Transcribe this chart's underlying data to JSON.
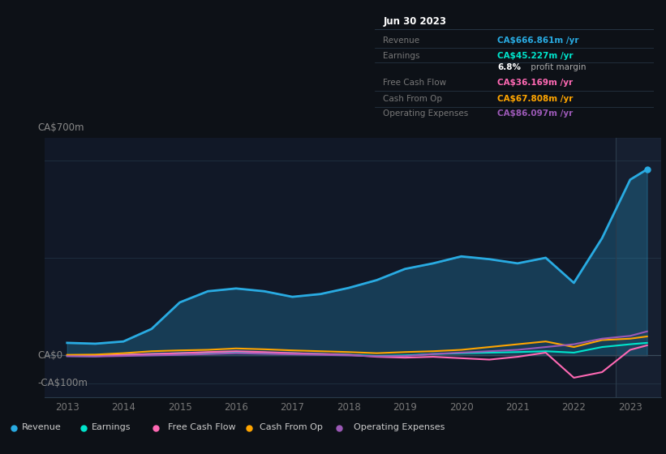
{
  "background_color": "#0d1117",
  "plot_bg_color": "#111827",
  "grid_color": "#1e2d3d",
  "zero_line_color": "#3a4a5a",
  "years": [
    2013.0,
    2013.5,
    2014.0,
    2014.5,
    2015.0,
    2015.5,
    2016.0,
    2016.5,
    2017.0,
    2017.5,
    2018.0,
    2018.5,
    2019.0,
    2019.5,
    2020.0,
    2020.5,
    2021.0,
    2021.5,
    2022.0,
    2022.5,
    2023.0,
    2023.3
  ],
  "revenue": [
    45,
    42,
    50,
    95,
    190,
    230,
    240,
    230,
    210,
    220,
    242,
    270,
    310,
    330,
    355,
    345,
    330,
    350,
    260,
    420,
    630,
    667
  ],
  "earnings": [
    -2,
    -3,
    2,
    5,
    8,
    10,
    12,
    10,
    8,
    5,
    2,
    -2,
    0,
    5,
    8,
    10,
    12,
    15,
    10,
    30,
    40,
    45
  ],
  "free_cash_flow": [
    0,
    -1,
    2,
    5,
    8,
    12,
    15,
    12,
    8,
    5,
    2,
    -5,
    -8,
    -5,
    -10,
    -15,
    -5,
    10,
    -80,
    -60,
    20,
    36
  ],
  "cash_from_op": [
    2,
    3,
    8,
    15,
    18,
    20,
    25,
    22,
    18,
    15,
    12,
    8,
    12,
    15,
    20,
    30,
    40,
    50,
    30,
    55,
    60,
    68
  ],
  "operating_expenses": [
    -3,
    -4,
    -2,
    0,
    2,
    5,
    8,
    6,
    4,
    2,
    0,
    -3,
    -2,
    5,
    10,
    15,
    20,
    30,
    40,
    60,
    70,
    86
  ],
  "revenue_color": "#29abe2",
  "earnings_color": "#00e5cc",
  "free_cash_flow_color": "#ff69b4",
  "cash_from_op_color": "#ffa500",
  "operating_expenses_color": "#9b59b6",
  "ylim_top": 780,
  "ylim_bottom": -150,
  "xtick_years": [
    2013,
    2014,
    2015,
    2016,
    2017,
    2018,
    2019,
    2020,
    2021,
    2022,
    2023
  ],
  "info_box_title": "Jun 30 2023",
  "info_rows": [
    {
      "label": "Revenue",
      "value": "CA$666.861m /yr",
      "color": "#29abe2"
    },
    {
      "label": "Earnings",
      "value": "CA$45.227m /yr",
      "color": "#00e5cc"
    },
    {
      "label": "",
      "value": "6.8% profit margin",
      "color": "#aaaaaa",
      "bold": "6.8%"
    },
    {
      "label": "Free Cash Flow",
      "value": "CA$36.169m /yr",
      "color": "#ff69b4"
    },
    {
      "label": "Cash From Op",
      "value": "CA$67.808m /yr",
      "color": "#ffa500"
    },
    {
      "label": "Operating Expenses",
      "value": "CA$86.097m /yr",
      "color": "#9b59b6"
    }
  ],
  "legend_items": [
    {
      "label": "Revenue",
      "color": "#29abe2"
    },
    {
      "label": "Earnings",
      "color": "#00e5cc"
    },
    {
      "label": "Free Cash Flow",
      "color": "#ff69b4"
    },
    {
      "label": "Cash From Op",
      "color": "#ffa500"
    },
    {
      "label": "Operating Expenses",
      "color": "#9b59b6"
    }
  ]
}
